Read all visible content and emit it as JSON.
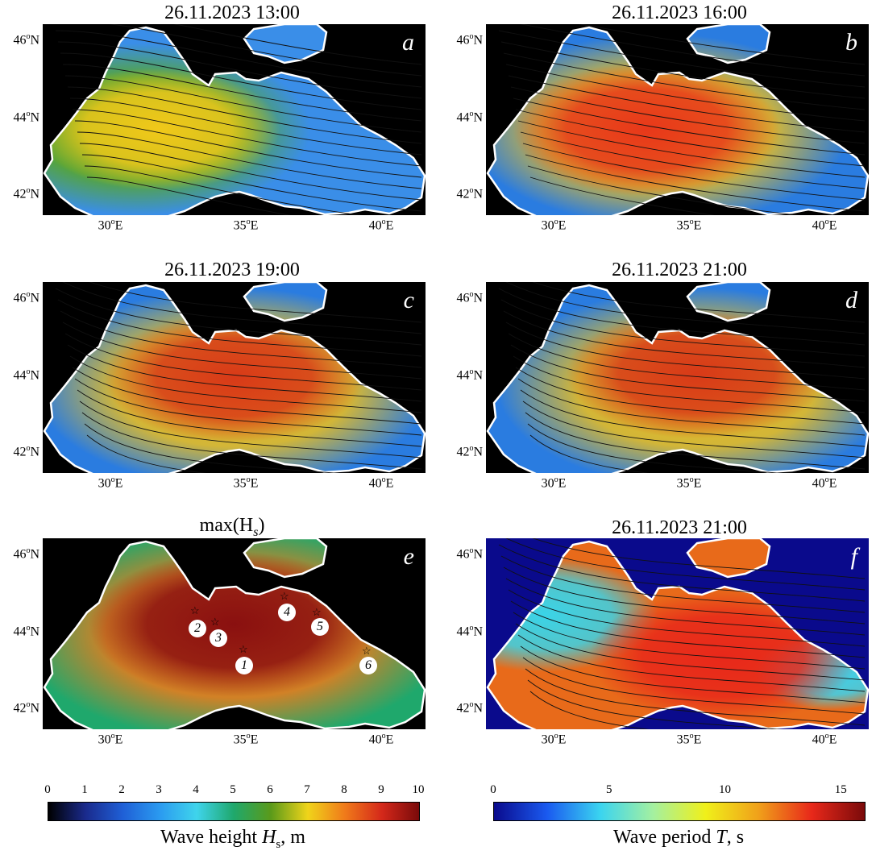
{
  "panels": [
    {
      "id": "a",
      "title": "26.11.2023 13:00",
      "letter": "a"
    },
    {
      "id": "b",
      "title": "26.11.2023 16:00",
      "letter": "b"
    },
    {
      "id": "c",
      "title": "26.11.2023 19:00",
      "letter": "c"
    },
    {
      "id": "d",
      "title": "26.11.2023 21:00",
      "letter": "d"
    },
    {
      "id": "e",
      "title": "max(H",
      "title_sub": "s",
      "title_end": ")",
      "letter": "e"
    },
    {
      "id": "f",
      "title": "26.11.2023 21:00",
      "letter": "f"
    }
  ],
  "axes": {
    "y_ticks": [
      "46",
      "44",
      "42"
    ],
    "y_unit": "N",
    "x_ticks": [
      "30",
      "35",
      "40"
    ],
    "x_unit": "E",
    "degree": "o"
  },
  "stations": [
    "1",
    "2",
    "3",
    "4",
    "5",
    "6"
  ],
  "colorbar_height": {
    "ticks": [
      "0",
      "1",
      "2",
      "3",
      "4",
      "5",
      "6",
      "7",
      "8",
      "9",
      "10"
    ],
    "label": "Wave height ",
    "label_var": "H",
    "label_sub": "s",
    "label_end": ", m",
    "colors": [
      "#000000",
      "#1a2a8c",
      "#1f5fd6",
      "#2a9af0",
      "#3fd4ec",
      "#1fa86c",
      "#5a9a1a",
      "#f0d41a",
      "#f07a1a",
      "#d4281a",
      "#7a0a0a"
    ]
  },
  "colorbar_period": {
    "ticks": [
      "0",
      "5",
      "10",
      "15"
    ],
    "label": "Wave period ",
    "label_var": "T",
    "label_end": ", s",
    "colors": [
      "#0a0a8c",
      "#1a5af0",
      "#3ad4f0",
      "#a4f0a0",
      "#f0f01a",
      "#f0a01a",
      "#e8281a",
      "#7a0a0a"
    ]
  }
}
